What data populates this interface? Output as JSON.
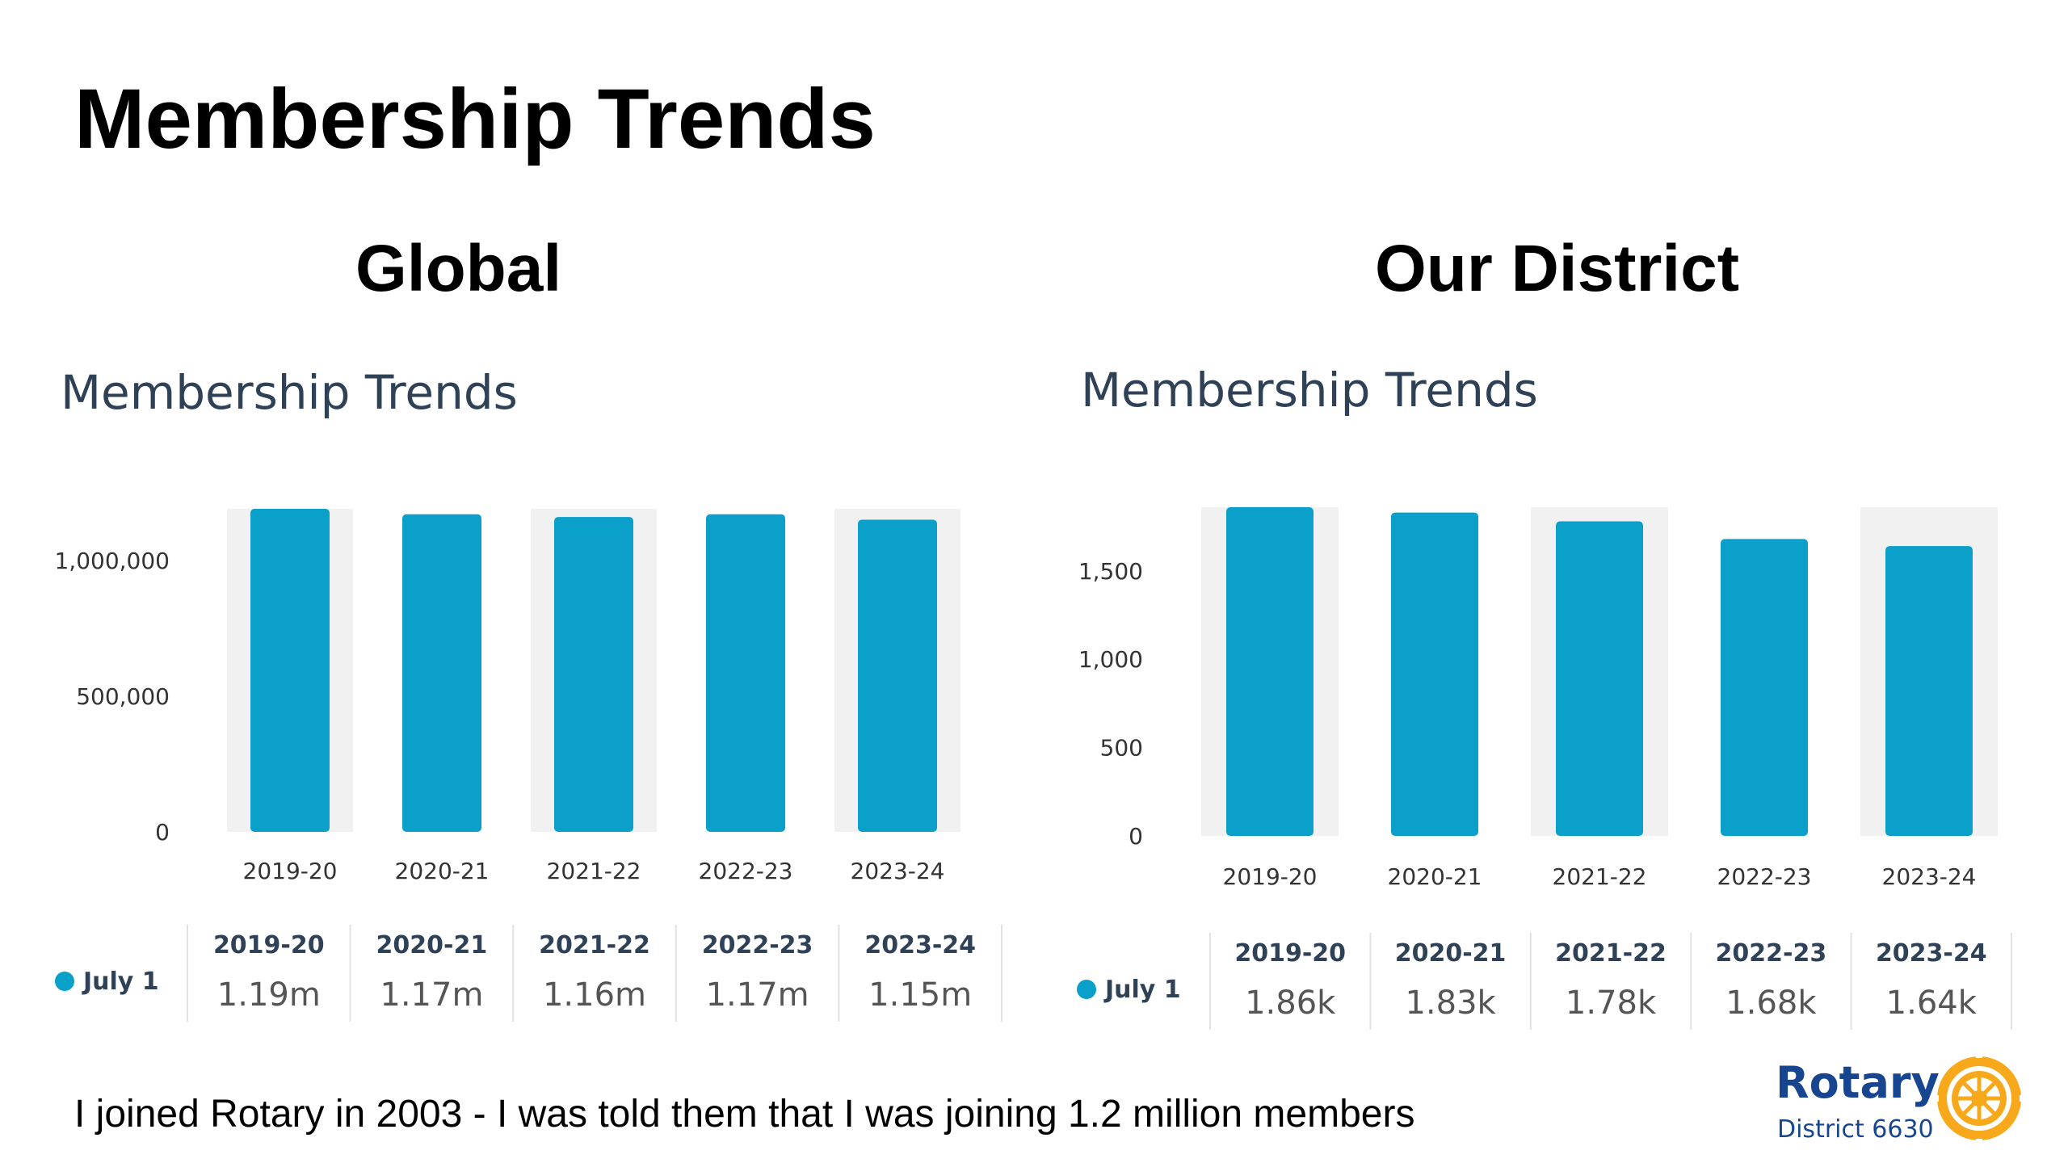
{
  "slide": {
    "title": "Membership Trends",
    "footnote": "I joined Rotary in 2003 - I was told them that I was joining 1.2 million members",
    "left_panel_title": "Global",
    "right_panel_title": "Our District"
  },
  "logo": {
    "word": "Rotary",
    "subtitle": "District 6630",
    "icon": "rotary-wheel-icon"
  },
  "colors": {
    "bar": "#0aa0c9",
    "band": "#f1f1f1",
    "heading": "#2f4156",
    "logo_blue": "#17458f",
    "logo_gold": "#f7a81b"
  },
  "chart_data": [
    {
      "type": "bar",
      "title": "Membership Trends",
      "categories": [
        "2019-20",
        "2020-21",
        "2021-22",
        "2022-23",
        "2023-24"
      ],
      "series": [
        {
          "name": "July 1",
          "values": [
            1190000,
            1170000,
            1160000,
            1170000,
            1150000
          ]
        }
      ],
      "ylim": [
        0,
        1190000
      ],
      "yticks": [
        0,
        500000,
        1000000
      ],
      "ytick_labels": [
        "0",
        "500,000",
        "1,000,000"
      ],
      "grid": false,
      "table": {
        "headers": [
          "2019-20",
          "2020-21",
          "2021-22",
          "2022-23",
          "2023-24"
        ],
        "row_label": "July 1",
        "values": [
          "1.19m",
          "1.17m",
          "1.16m",
          "1.17m",
          "1.15m"
        ]
      }
    },
    {
      "type": "bar",
      "title": "Membership Trends",
      "categories": [
        "2019-20",
        "2020-21",
        "2021-22",
        "2022-23",
        "2023-24"
      ],
      "series": [
        {
          "name": "July 1",
          "values": [
            1860,
            1830,
            1780,
            1680,
            1640
          ]
        }
      ],
      "ylim": [
        0,
        1860
      ],
      "yticks": [
        0,
        500,
        1000,
        1500
      ],
      "ytick_labels": [
        "0",
        "500",
        "1,000",
        "1,500"
      ],
      "grid": false,
      "table": {
        "headers": [
          "2019-20",
          "2020-21",
          "2021-22",
          "2022-23",
          "2023-24"
        ],
        "row_label": "July 1",
        "values": [
          "1.86k",
          "1.83k",
          "1.78k",
          "1.68k",
          "1.64k"
        ]
      }
    }
  ]
}
